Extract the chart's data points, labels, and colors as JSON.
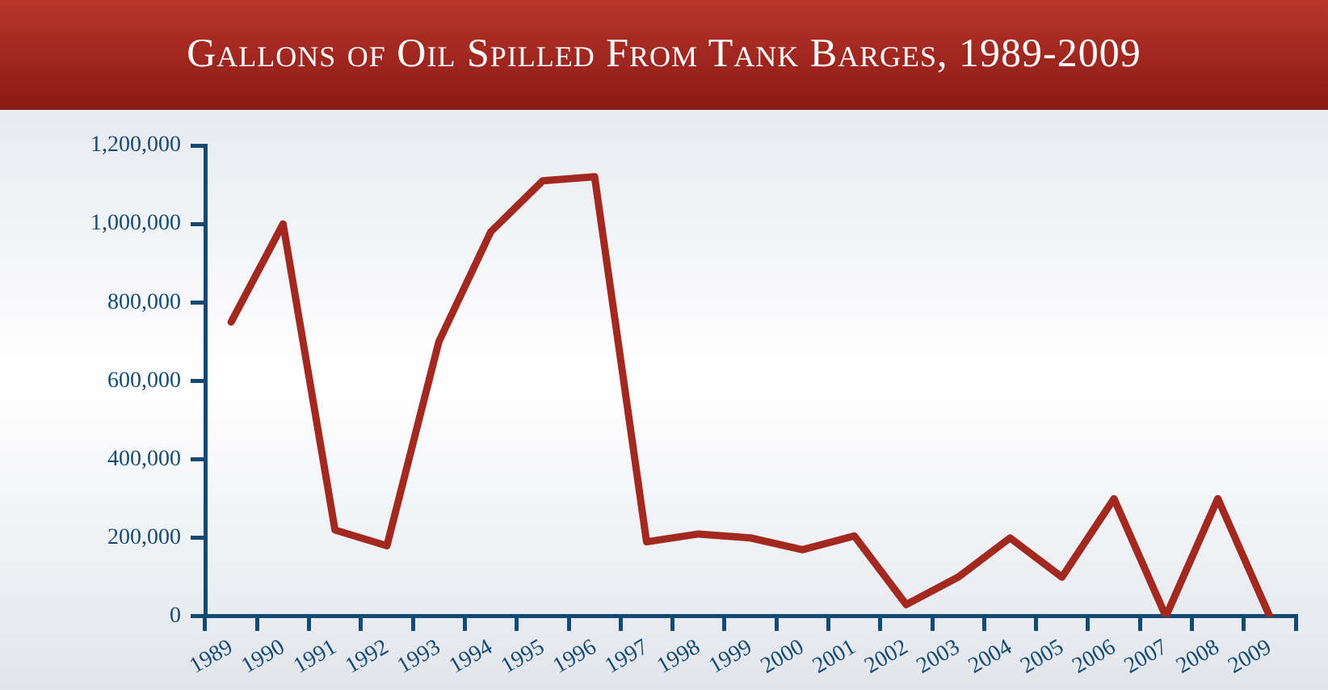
{
  "chart_data": {
    "type": "line",
    "title": "Gallons of Oil Spilled From Tank Barges, 1989-2009",
    "categories": [
      "1989",
      "1990",
      "1991",
      "1992",
      "1993",
      "1994",
      "1995",
      "1996",
      "1997",
      "1998",
      "1999",
      "2000",
      "2001",
      "2002",
      "2003",
      "2004",
      "2005",
      "2006",
      "2007",
      "2008",
      "2009"
    ],
    "series": [
      {
        "color": "#a3281f",
        "values": [
          750000,
          1000000,
          220000,
          180000,
          700000,
          980000,
          1110000,
          1120000,
          190000,
          210000,
          200000,
          170000,
          205000,
          30000,
          100000,
          200000,
          100000,
          300000,
          0,
          300000,
          0
        ]
      }
    ],
    "ylim": [
      0,
      1200000
    ],
    "yticks": [
      0,
      {
        "value": 200000,
        "label": "200,000"
      },
      {
        "value": 400000,
        "label": "400,000"
      },
      {
        "value": 600000,
        "label": "600,000"
      },
      {
        "value": 800000,
        "label": "800,000"
      },
      {
        "value": 1000000,
        "label": "1,000,000"
      },
      {
        "value": 1200000,
        "label": "1,200,000"
      }
    ],
    "grid": false,
    "legend": false,
    "marker": "none",
    "line_style": "solid"
  }
}
